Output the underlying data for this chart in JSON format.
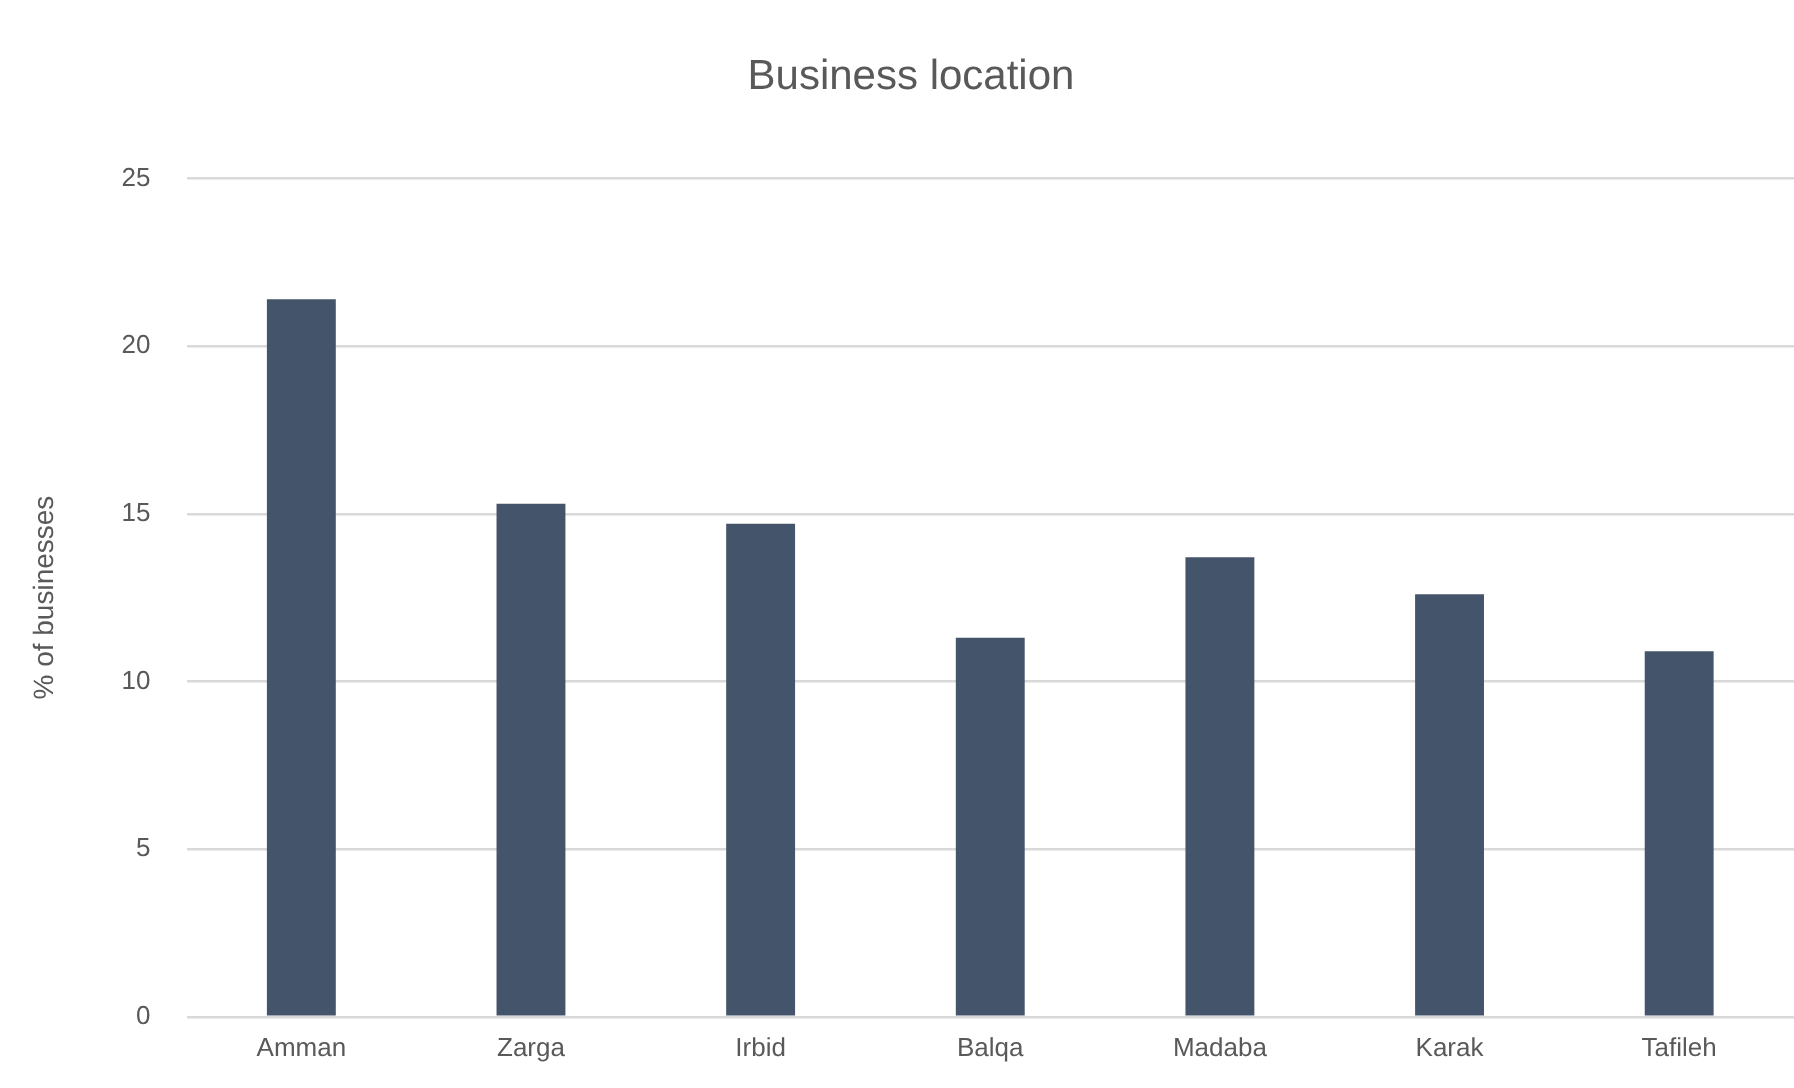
{
  "chart_data": {
    "type": "bar",
    "title": "Business location",
    "ylabel": "% of businesses",
    "categories": [
      "Amman",
      "Zarga",
      "Irbid",
      "Balqa",
      "Madaba",
      "Karak",
      "Tafileh"
    ],
    "values": [
      21.4,
      15.3,
      14.7,
      11.3,
      13.7,
      12.6,
      10.9
    ],
    "color": "#44546a",
    "ylim": [
      0,
      25
    ],
    "yticks": [
      0,
      5,
      10,
      15,
      20,
      25
    ],
    "grid": "y",
    "legend": false
  }
}
